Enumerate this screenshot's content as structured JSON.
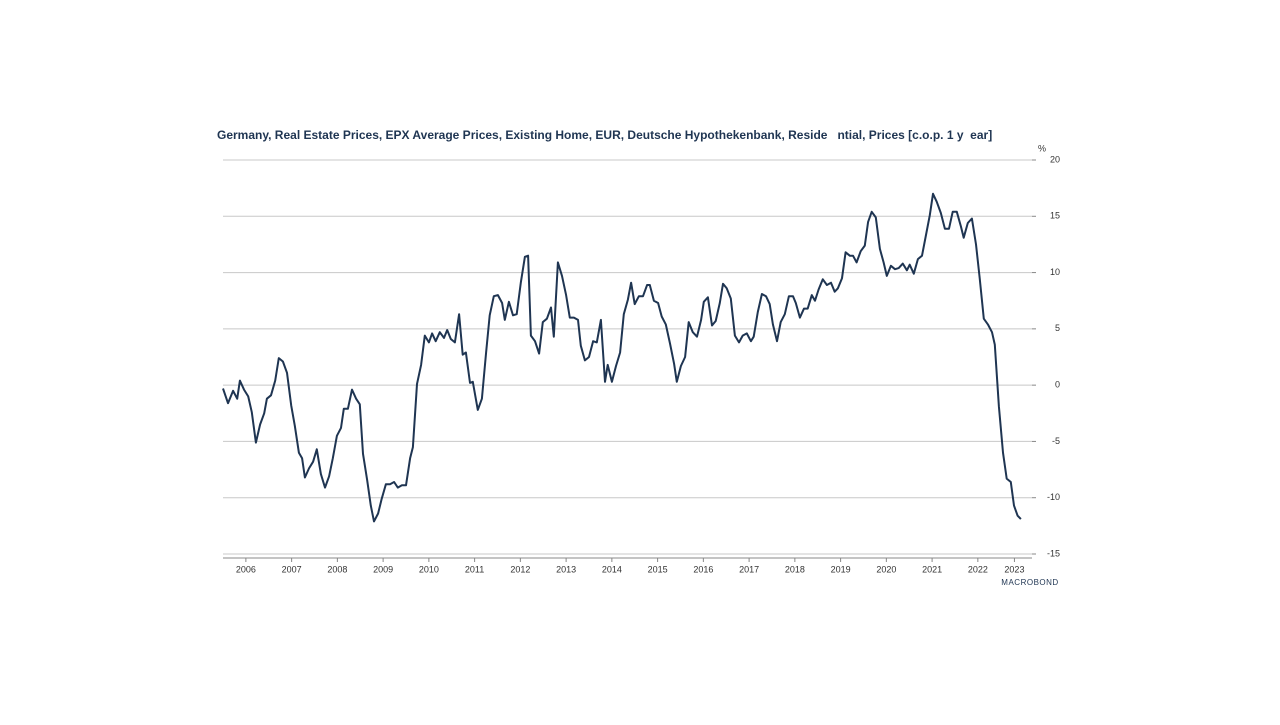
{
  "chart_data": {
    "type": "line",
    "title": "Germany, Real Estate Prices, EPX Average Prices, Existing Home, EUR, Deutsche Hypothekenbank, Reside   ntial, Prices [c.o.p. 1 y  ear]",
    "y_unit": "%",
    "source": "MACROBOND",
    "xlim": [
      2006,
      2023.64
    ],
    "ylim": [
      -15,
      20
    ],
    "yticks": [
      20,
      15,
      10,
      5,
      0,
      -5,
      -10,
      -15
    ],
    "xticks": [
      {
        "value": 2006.5,
        "label": "2006"
      },
      {
        "value": 2007.5,
        "label": "2007"
      },
      {
        "value": 2008.5,
        "label": "2008"
      },
      {
        "value": 2009.5,
        "label": "2009"
      },
      {
        "value": 2010.5,
        "label": "2010"
      },
      {
        "value": 2011.5,
        "label": "2011"
      },
      {
        "value": 2012.5,
        "label": "2012"
      },
      {
        "value": 2013.5,
        "label": "2013"
      },
      {
        "value": 2014.5,
        "label": "2014"
      },
      {
        "value": 2015.5,
        "label": "2015"
      },
      {
        "value": 2016.5,
        "label": "2016"
      },
      {
        "value": 2017.5,
        "label": "2017"
      },
      {
        "value": 2018.5,
        "label": "2018"
      },
      {
        "value": 2019.5,
        "label": "2019"
      },
      {
        "value": 2020.5,
        "label": "2020"
      },
      {
        "value": 2021.5,
        "label": "2021"
      },
      {
        "value": 2022.5,
        "label": "2022"
      },
      {
        "value": 2023.3,
        "label": "2023"
      }
    ],
    "grid": true,
    "color": "#1f3552",
    "x": [
      2006.0,
      2006.11,
      2006.22,
      2006.31,
      2006.37,
      2006.46,
      2006.55,
      2006.63,
      2006.72,
      2006.81,
      2006.9,
      2006.96,
      2007.05,
      2007.14,
      2007.22,
      2007.31,
      2007.4,
      2007.49,
      2007.57,
      2007.66,
      2007.73,
      2007.79,
      2007.88,
      2007.97,
      2008.05,
      2008.14,
      2008.23,
      2008.32,
      2008.4,
      2008.49,
      2008.58,
      2008.64,
      2008.73,
      2008.82,
      2008.91,
      2008.99,
      2009.06,
      2009.15,
      2009.23,
      2009.3,
      2009.39,
      2009.47,
      2009.56,
      2009.65,
      2009.74,
      2009.82,
      2009.91,
      2010.0,
      2010.09,
      2010.15,
      2010.24,
      2010.33,
      2010.41,
      2010.5,
      2010.57,
      2010.65,
      2010.74,
      2010.83,
      2010.9,
      2010.98,
      2011.07,
      2011.16,
      2011.24,
      2011.31,
      2011.4,
      2011.46,
      2011.57,
      2011.66,
      2011.75,
      2011.83,
      2011.92,
      2012.01,
      2012.1,
      2012.16,
      2012.25,
      2012.34,
      2012.42,
      2012.51,
      2012.6,
      2012.67,
      2012.73,
      2012.82,
      2012.91,
      2012.99,
      2013.08,
      2013.17,
      2013.23,
      2013.32,
      2013.41,
      2013.5,
      2013.58,
      2013.67,
      2013.76,
      2013.82,
      2013.91,
      2014.0,
      2014.09,
      2014.17,
      2014.26,
      2014.35,
      2014.41,
      2014.5,
      2014.59,
      2014.68,
      2014.76,
      2014.85,
      2014.92,
      2015.0,
      2015.09,
      2015.18,
      2015.27,
      2015.33,
      2015.42,
      2015.51,
      2015.59,
      2015.68,
      2015.77,
      2015.86,
      2015.92,
      2016.01,
      2016.1,
      2016.18,
      2016.27,
      2016.36,
      2016.45,
      2016.51,
      2016.6,
      2016.69,
      2016.77,
      2016.86,
      2016.93,
      2017.01,
      2017.1,
      2017.19,
      2017.28,
      2017.36,
      2017.45,
      2017.54,
      2017.6,
      2017.69,
      2017.78,
      2017.87,
      2017.95,
      2018.02,
      2018.11,
      2018.19,
      2018.28,
      2018.37,
      2018.46,
      2018.52,
      2018.61,
      2018.7,
      2018.78,
      2018.87,
      2018.94,
      2019.02,
      2019.11,
      2019.2,
      2019.29,
      2019.37,
      2019.44,
      2019.53,
      2019.61,
      2019.7,
      2019.77,
      2019.85,
      2019.94,
      2020.03,
      2020.1,
      2020.18,
      2020.27,
      2020.36,
      2020.44,
      2020.51,
      2020.6,
      2020.69,
      2020.77,
      2020.86,
      2020.95,
      2021.01,
      2021.1,
      2021.19,
      2021.28,
      2021.36,
      2021.45,
      2021.52,
      2021.6,
      2021.69,
      2021.78,
      2021.87,
      2021.95,
      2022.04,
      2022.13,
      2022.19,
      2022.28,
      2022.37,
      2022.46,
      2022.54,
      2022.63,
      2022.72,
      2022.81,
      2022.87,
      2022.96,
      2023.05,
      2023.13,
      2023.22,
      2023.29,
      2023.37,
      2023.44
    ],
    "values": [
      -0.3,
      -1.6,
      -0.5,
      -1.2,
      0.4,
      -0.4,
      -1,
      -2.4,
      -5.1,
      -3.5,
      -2.5,
      -1.2,
      -0.9,
      0.4,
      2.4,
      2.1,
      1.1,
      -1.8,
      -3.6,
      -6,
      -6.5,
      -8.2,
      -7.4,
      -6.8,
      -5.7,
      -7.9,
      -9.1,
      -8.1,
      -6.5,
      -4.5,
      -3.8,
      -2.1,
      -2.1,
      -0.4,
      -1.2,
      -1.7,
      -6.1,
      -8.4,
      -10.7,
      -12.1,
      -11.4,
      -10.1,
      -8.8,
      -8.8,
      -8.6,
      -9.1,
      -8.9,
      -8.9,
      -6.5,
      -5.5,
      0.1,
      1.8,
      4.4,
      3.8,
      4.6,
      3.9,
      4.7,
      4.2,
      4.9,
      4.1,
      3.8,
      6.3,
      2.7,
      2.9,
      0.2,
      0.3,
      -2.2,
      -1.2,
      2.9,
      6.2,
      7.9,
      8,
      7.3,
      5.8,
      7.4,
      6.2,
      6.3,
      9.1,
      11.4,
      11.5,
      4.4,
      3.9,
      2.8,
      5.6,
      5.9,
      6.9,
      4.3,
      10.9,
      9.7,
      8,
      6,
      6,
      5.8,
      3.5,
      2.2,
      2.5,
      3.9,
      3.8,
      5.8,
      0.3,
      1.8,
      0.3,
      1.7,
      2.9,
      6.3,
      7.6,
      9.1,
      7.2,
      7.9,
      7.9,
      8.9,
      8.9,
      7.5,
      7.3,
      6.1,
      5.4,
      3.7,
      1.9,
      0.3,
      1.7,
      2.5,
      5.6,
      4.7,
      4.3,
      5.8,
      7.4,
      7.8,
      5.3,
      5.7,
      7.3,
      9,
      8.6,
      7.7,
      4.4,
      3.8,
      4.4,
      4.6,
      3.9,
      4.3,
      6.5,
      8.1,
      7.9,
      7.2,
      5.4,
      3.9,
      5.6,
      6.3,
      7.9,
      7.9,
      7.3,
      6,
      6.8,
      6.8,
      8,
      7.5,
      8.5,
      9.4,
      8.9,
      9.1,
      8.3,
      8.6,
      9.5,
      11.8,
      11.5,
      11.5,
      10.9,
      11.9,
      12.4,
      14.5,
      15.4,
      14.9,
      12.1,
      10.9,
      9.7,
      10.6,
      10.3,
      10.4,
      10.8,
      10.2,
      10.7,
      9.9,
      11.2,
      11.5,
      13.2,
      15.1,
      17,
      16.3,
      15.3,
      13.9,
      13.9,
      15.4,
      15.4,
      14.1,
      13.1,
      14.4,
      14.8,
      12.5,
      9.5,
      5.9,
      5.4,
      4.7,
      3.6,
      -1.9,
      -6,
      -8.3,
      -8.6,
      -10.7,
      -11.6,
      -11.9
    ]
  }
}
